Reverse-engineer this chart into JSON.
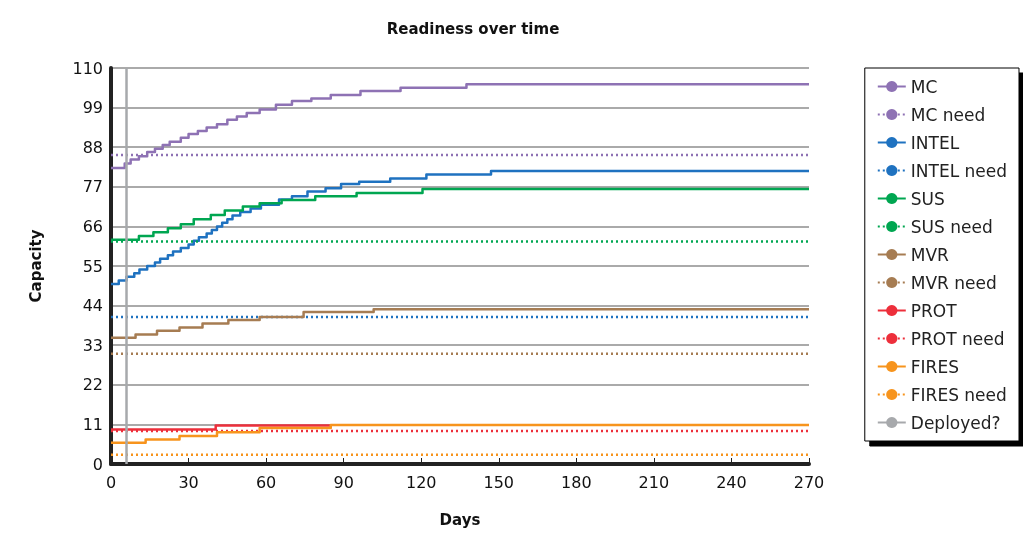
{
  "chart_data": {
    "type": "step",
    "title": "Readiness over time",
    "xlabel": "Days",
    "ylabel": "Capacity",
    "xlim": [
      0,
      270
    ],
    "xticks": [
      0,
      30,
      60,
      90,
      120,
      150,
      180,
      210,
      240,
      270
    ],
    "ylim": [
      0,
      110
    ],
    "yticks": [
      0,
      11,
      22,
      33,
      44,
      55,
      66,
      77,
      88,
      99,
      110
    ],
    "grid": "y",
    "legend": "right",
    "marker": "none",
    "series": [
      {
        "name": "MC",
        "color": "#8e72b4",
        "line_style": "solid",
        "x": [
          0,
          5.3,
          7.6,
          10.8,
          14,
          17,
          20,
          22.7,
          27,
          30,
          33.6,
          37,
          41,
          45,
          48.7,
          52.5,
          57.5,
          63.8,
          70,
          77.5,
          85,
          96.5,
          112,
          137.5,
          270
        ],
        "values": [
          82.2,
          83.5,
          84.6,
          85.5,
          86.7,
          87.6,
          88.6,
          89.5,
          90.6,
          91.7,
          92.5,
          93.5,
          94.4,
          95.6,
          96.5,
          97.5,
          98.5,
          99.8,
          100.8,
          101.5,
          102.5,
          103.6,
          104.5,
          105.5,
          105.5
        ]
      },
      {
        "name": "MC need",
        "type": "line",
        "color": "#8e72b4",
        "line_style": "dotted",
        "x": [
          0,
          270
        ],
        "values": [
          85.8,
          85.8
        ]
      },
      {
        "name": "INTEL",
        "color": "#1f72c0",
        "line_style": "solid",
        "x": [
          0,
          3,
          6,
          9,
          11,
          14,
          17,
          19,
          22,
          24,
          27,
          30,
          32,
          34,
          37,
          39,
          41,
          43,
          45,
          47,
          50,
          54,
          58,
          65,
          70,
          76,
          83,
          89,
          96,
          108,
          122,
          147,
          270
        ],
        "values": [
          50,
          51,
          52,
          53,
          54,
          55,
          56,
          57,
          58,
          59,
          60,
          61,
          62,
          63,
          64,
          65,
          66,
          67,
          68,
          69,
          70,
          71,
          72,
          73.5,
          74.4,
          75.7,
          76.6,
          77.8,
          78.4,
          79.3,
          80.4,
          81.4,
          81.4
        ]
      },
      {
        "name": "INTEL need",
        "type": "line",
        "color": "#1f72c0",
        "line_style": "dotted",
        "x": [
          0,
          270
        ],
        "values": [
          40.8,
          40.8
        ]
      },
      {
        "name": "SUS",
        "color": "#00a651",
        "line_style": "solid",
        "x": [
          0,
          10.8,
          16.4,
          22,
          27,
          32,
          38.6,
          44,
          51,
          57.5,
          66,
          79,
          95,
          120.5,
          270
        ],
        "values": [
          62.3,
          63.3,
          64.4,
          65.5,
          66.6,
          68,
          69.2,
          70.4,
          71.5,
          72.4,
          73.3,
          74.4,
          75.3,
          76.4,
          76.4
        ]
      },
      {
        "name": "SUS need",
        "type": "line",
        "color": "#00a651",
        "line_style": "dotted",
        "x": [
          0,
          270
        ],
        "values": [
          61.8,
          61.8
        ]
      },
      {
        "name": "MVR",
        "color": "#a67c52",
        "line_style": "solid",
        "x": [
          0,
          9.5,
          17.8,
          26.5,
          35.4,
          45.4,
          57.5,
          74.5,
          101.6,
          270
        ],
        "values": [
          35.1,
          36,
          37,
          37.9,
          39,
          40,
          40.8,
          42.2,
          43,
          43
        ]
      },
      {
        "name": "MVR need",
        "type": "line",
        "color": "#a67c52",
        "line_style": "dotted",
        "x": [
          0,
          270
        ],
        "values": [
          30.6,
          30.6
        ]
      },
      {
        "name": "PROT",
        "color": "#ed2f3b",
        "line_style": "solid",
        "x": [
          0,
          40.5,
          85
        ],
        "values": [
          9.6,
          10.7,
          10.7
        ]
      },
      {
        "name": "PROT need",
        "type": "line",
        "color": "#ed2f3b",
        "line_style": "dotted",
        "x": [
          0,
          270
        ],
        "values": [
          9.2,
          9.2
        ]
      },
      {
        "name": "FIRES",
        "color": "#f7941d",
        "line_style": "solid",
        "x": [
          0,
          13.4,
          26.5,
          41,
          57.5,
          85,
          270
        ],
        "values": [
          5.9,
          6.8,
          7.8,
          8.8,
          10,
          10.8,
          10.8
        ]
      },
      {
        "name": "FIRES need",
        "type": "line",
        "color": "#f7941d",
        "line_style": "dotted",
        "x": [
          0,
          270
        ],
        "values": [
          2.6,
          2.6
        ]
      },
      {
        "name": "Deployed?",
        "type": "line",
        "color": "#a7a9ac",
        "line_style": "solid",
        "x": [
          6,
          6
        ],
        "values": [
          0,
          110
        ]
      }
    ]
  }
}
